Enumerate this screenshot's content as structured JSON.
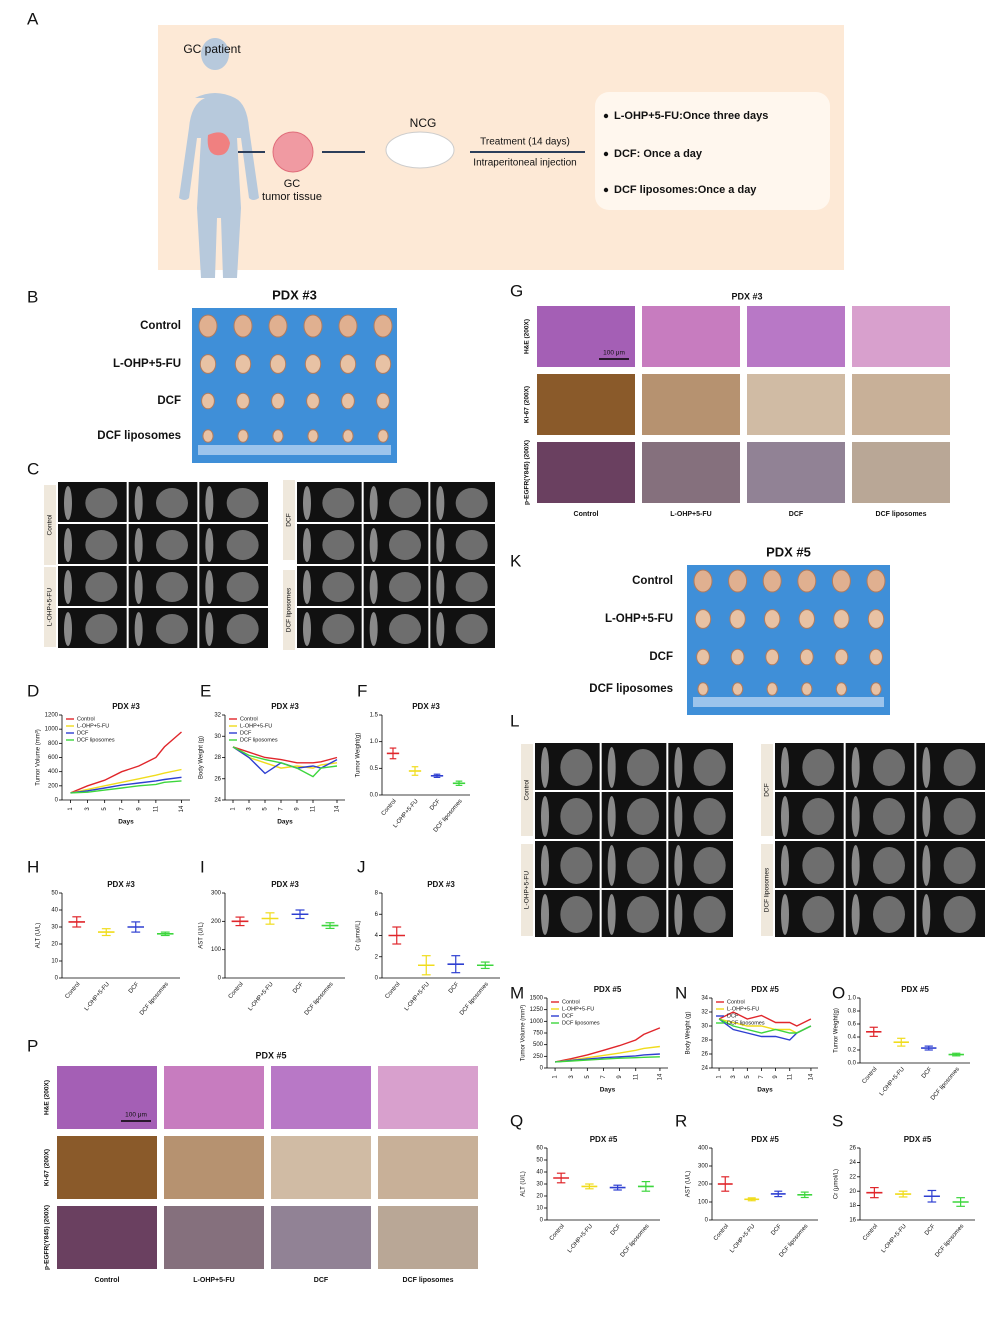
{
  "panels": [
    "A",
    "B",
    "C",
    "D",
    "E",
    "F",
    "G",
    "H",
    "I",
    "J",
    "K",
    "L",
    "M",
    "N",
    "O",
    "P",
    "Q",
    "R",
    "S"
  ],
  "schematic": {
    "patient": "GC patient",
    "tissue_1": "GC",
    "tissue_2": "tumor tissue",
    "model": "NCG",
    "treatment": "Treatment (14 days)",
    "route": "Intraperitoneal injection",
    "regimens": [
      "L-OHP+5-FU:Once three days",
      "DCF: Once a day",
      "DCF liposomes:Once a day"
    ]
  },
  "groups": [
    "Control",
    "L-OHP+5-FU",
    "DCF",
    "DCF liposomes"
  ],
  "photo_b": {
    "title": "PDX #3"
  },
  "photo_k": {
    "title": "PDX #5"
  },
  "histology_g": {
    "title": "PDX #3",
    "rows": [
      "H&E (200X)",
      "Ki-67 (200X)",
      "p-EGFR(Y845) (200X)"
    ],
    "scale": "100 μm"
  },
  "histology_p": {
    "title": "PDX #5",
    "rows": [
      "H&E (200X)",
      "Ki-67 (200X)",
      "p-EGFR(Y845) (200X)"
    ],
    "scale": "100 μm"
  },
  "chart_data": [
    {
      "type": "line",
      "title": "PDX #3",
      "xlabel": "Days",
      "ylabel": "Tumor Volume (mm³)",
      "x": [
        1,
        3,
        5,
        7,
        9,
        11,
        12,
        14
      ],
      "xlim": [
        0,
        15
      ],
      "xticks": [
        1,
        3,
        5,
        7,
        9,
        11,
        14
      ],
      "ylim": [
        0,
        1200
      ],
      "yticks": [
        0,
        200,
        400,
        600,
        800,
        1000,
        1200
      ],
      "series": [
        {
          "name": "Control",
          "color": "#e0262b",
          "values": [
            100,
            200,
            280,
            400,
            480,
            600,
            750,
            960
          ]
        },
        {
          "name": "L-OHP+5-FU",
          "color": "#f0dc1c",
          "values": [
            100,
            150,
            200,
            250,
            300,
            350,
            380,
            430
          ]
        },
        {
          "name": "DCF",
          "color": "#2e3fd1",
          "values": [
            100,
            130,
            170,
            210,
            240,
            270,
            290,
            320
          ]
        },
        {
          "name": "DCF liposomes",
          "color": "#3dd63d",
          "values": [
            100,
            110,
            140,
            170,
            200,
            220,
            250,
            270
          ]
        }
      ]
    },
    {
      "type": "line",
      "title": "PDX #3",
      "xlabel": "Days",
      "ylabel": "Body Weight (g)",
      "x": [
        1,
        3,
        5,
        7,
        9,
        11,
        12,
        14
      ],
      "xlim": [
        0,
        15
      ],
      "xticks": [
        1,
        3,
        5,
        7,
        9,
        11,
        14
      ],
      "ylim": [
        24,
        32
      ],
      "yticks": [
        24,
        26,
        28,
        30,
        32
      ],
      "series": [
        {
          "name": "Control",
          "color": "#e0262b",
          "values": [
            29,
            28.5,
            28,
            27.8,
            27.5,
            27.5,
            27.6,
            28
          ]
        },
        {
          "name": "L-OHP+5-FU",
          "color": "#f0dc1c",
          "values": [
            29,
            28,
            27.5,
            27,
            27.2,
            27,
            27.3,
            27.5
          ]
        },
        {
          "name": "DCF",
          "color": "#2e3fd1",
          "values": [
            29,
            28,
            26.5,
            27.5,
            27,
            27.2,
            27,
            27.8
          ]
        },
        {
          "name": "DCF liposomes",
          "color": "#3dd63d",
          "values": [
            29,
            28.2,
            27.8,
            27.5,
            27,
            26.2,
            27,
            27.2
          ]
        }
      ]
    },
    {
      "type": "dot",
      "title": "PDX #3",
      "ylabel": "Tumor Weight(g)",
      "categories": [
        "Control",
        "L-OHP+5-FU",
        "DCF",
        "DCF liposomes"
      ],
      "colors": [
        "#e0262b",
        "#f0dc1c",
        "#2e3fd1",
        "#3dd63d"
      ],
      "values": [
        0.78,
        0.45,
        0.36,
        0.22
      ],
      "errors": [
        0.1,
        0.08,
        0.03,
        0.04
      ],
      "ylim": [
        0,
        1.5
      ],
      "yticks": [
        {
          "value": 0,
          "label": "0.0"
        },
        0.5,
        {
          "value": 1,
          "label": "1.0"
        },
        1.5
      ]
    },
    {
      "type": "dot",
      "title": "PDX #3",
      "ylabel": "ALT (U/L)",
      "categories": [
        "Control",
        "L-OHP+5-FU",
        "DCF",
        "DCF liposomes"
      ],
      "colors": [
        "#e0262b",
        "#f0dc1c",
        "#2e3fd1",
        "#3dd63d"
      ],
      "values": [
        33,
        27,
        30,
        26
      ],
      "errors": [
        3,
        2,
        3,
        1
      ],
      "ylim": [
        0,
        50
      ],
      "yticks": [
        0,
        10,
        20,
        30,
        40,
        50
      ]
    },
    {
      "type": "dot",
      "title": "PDX #3",
      "ylabel": "AST (U/L)",
      "categories": [
        "Control",
        "L-OHP+5-FU",
        "DCF",
        "DCF liposomes"
      ],
      "colors": [
        "#e0262b",
        "#f0dc1c",
        "#2e3fd1",
        "#3dd63d"
      ],
      "values": [
        200,
        210,
        225,
        185
      ],
      "errors": [
        15,
        20,
        15,
        10
      ],
      "ylim": [
        0,
        300
      ],
      "yticks": [
        0,
        100,
        200,
        300
      ]
    },
    {
      "type": "dot",
      "title": "PDX #3",
      "ylabel": "Cr (μmol/L)",
      "categories": [
        "Control",
        "L-OHP+5-FU",
        "DCF",
        "DCF liposomes"
      ],
      "colors": [
        "#e0262b",
        "#f0dc1c",
        "#2e3fd1",
        "#3dd63d"
      ],
      "values": [
        4,
        1.2,
        1.3,
        1.2
      ],
      "errors": [
        0.8,
        0.9,
        0.8,
        0.3
      ],
      "ylim": [
        0,
        8
      ],
      "yticks": [
        0,
        2,
        4,
        6,
        8
      ]
    },
    {
      "type": "line",
      "title": "PDX #5",
      "xlabel": "Days",
      "ylabel": "Tumor Volume (mm³)",
      "x": [
        1,
        3,
        5,
        7,
        9,
        11,
        12,
        14
      ],
      "xlim": [
        0,
        15
      ],
      "xticks": [
        1,
        3,
        5,
        7,
        9,
        11,
        14
      ],
      "ylim": [
        0,
        1500
      ],
      "yticks": [
        0,
        250,
        500,
        750,
        1000,
        1250,
        1500
      ],
      "series": [
        {
          "name": "Control",
          "color": "#e0262b",
          "values": [
            130,
            200,
            280,
            380,
            480,
            600,
            720,
            860
          ]
        },
        {
          "name": "L-OHP+5-FU",
          "color": "#f0dc1c",
          "values": [
            130,
            170,
            220,
            270,
            320,
            380,
            420,
            460
          ]
        },
        {
          "name": "DCF",
          "color": "#2e3fd1",
          "values": [
            130,
            160,
            190,
            220,
            240,
            260,
            280,
            300
          ]
        },
        {
          "name": "DCF liposomes",
          "color": "#3dd63d",
          "values": [
            130,
            150,
            170,
            190,
            210,
            220,
            230,
            240
          ]
        }
      ]
    },
    {
      "type": "line",
      "title": "PDX #5",
      "xlabel": "Days",
      "ylabel": "Body Weight (g)",
      "x": [
        1,
        3,
        5,
        7,
        9,
        11,
        12,
        14
      ],
      "xlim": [
        0,
        15
      ],
      "xticks": [
        1,
        3,
        5,
        7,
        9,
        11,
        14
      ],
      "ylim": [
        24,
        34
      ],
      "yticks": [
        24,
        26,
        28,
        30,
        32,
        34
      ],
      "series": [
        {
          "name": "Control",
          "color": "#e0262b",
          "values": [
            31,
            32,
            31,
            31.5,
            30.5,
            30.5,
            30,
            31
          ]
        },
        {
          "name": "L-OHP+5-FU",
          "color": "#f0dc1c",
          "values": [
            31,
            30.5,
            30,
            30,
            29.5,
            29.5,
            29,
            30
          ]
        },
        {
          "name": "DCF",
          "color": "#2e3fd1",
          "values": [
            31,
            29.5,
            29,
            28.5,
            28.5,
            28,
            29,
            30
          ]
        },
        {
          "name": "DCF liposomes",
          "color": "#3dd63d",
          "values": [
            31,
            30,
            29.5,
            29,
            29.5,
            29,
            29,
            30
          ]
        }
      ]
    },
    {
      "type": "dot",
      "title": "PDX #5",
      "ylabel": "Tumor Weight(g)",
      "categories": [
        "Control",
        "L-OHP+5-FU",
        "DCF",
        "DCF liposomes"
      ],
      "colors": [
        "#e0262b",
        "#f0dc1c",
        "#2e3fd1",
        "#3dd63d"
      ],
      "values": [
        0.48,
        0.32,
        0.23,
        0.13
      ],
      "errors": [
        0.07,
        0.06,
        0.03,
        0.02
      ],
      "ylim": [
        0,
        1
      ],
      "yticks": [
        {
          "value": 0,
          "label": "0.0"
        },
        0.2,
        0.4,
        0.6,
        0.8,
        {
          "value": 1,
          "label": "1.0"
        }
      ]
    },
    {
      "type": "dot",
      "title": "PDX #5",
      "ylabel": "ALT (U/L)",
      "categories": [
        "Control",
        "L-OHP+5-FU",
        "DCF",
        "DCF liposomes"
      ],
      "colors": [
        "#e0262b",
        "#f0dc1c",
        "#2e3fd1",
        "#3dd63d"
      ],
      "values": [
        35,
        28,
        27,
        28
      ],
      "errors": [
        4,
        2,
        2,
        4
      ],
      "ylim": [
        0,
        60
      ],
      "yticks": [
        0,
        10,
        20,
        30,
        40,
        50,
        60
      ]
    },
    {
      "type": "dot",
      "title": "PDX #5",
      "ylabel": "AST (U/L)",
      "categories": [
        "Control",
        "L-OHP+5-FU",
        "DCF",
        "DCF liposomes"
      ],
      "colors": [
        "#e0262b",
        "#f0dc1c",
        "#2e3fd1",
        "#3dd63d"
      ],
      "values": [
        200,
        115,
        145,
        140
      ],
      "errors": [
        40,
        8,
        15,
        15
      ],
      "ylim": [
        0,
        400
      ],
      "yticks": [
        0,
        100,
        200,
        300,
        400
      ]
    },
    {
      "type": "dot",
      "title": "PDX #5",
      "ylabel": "Cr (μmol/L)",
      "categories": [
        "Control",
        "L-OHP+5-FU",
        "DCF",
        "DCF liposomes"
      ],
      "colors": [
        "#e0262b",
        "#f0dc1c",
        "#2e3fd1",
        "#3dd63d"
      ],
      "values": [
        19.8,
        19.6,
        19.3,
        18.5
      ],
      "errors": [
        0.7,
        0.4,
        0.8,
        0.6
      ],
      "ylim": [
        16,
        26
      ],
      "yticks": [
        16,
        18,
        20,
        22,
        24,
        26
      ]
    }
  ]
}
